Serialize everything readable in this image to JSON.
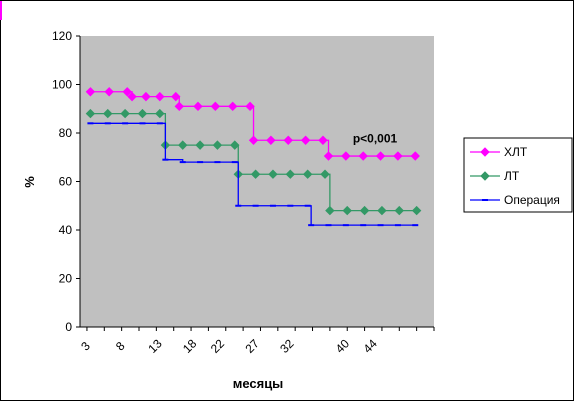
{
  "chart_data": {
    "type": "line",
    "step": true,
    "title": "",
    "xlabel": "месяцы",
    "ylabel": "%",
    "ylim": [
      0,
      120
    ],
    "yticks": [
      0,
      20,
      40,
      60,
      80,
      100,
      120
    ],
    "xlim": [
      1.5,
      52.5
    ],
    "xtick_labels": [
      "3",
      "8",
      "13",
      "18",
      "22",
      "27",
      "32",
      "40",
      "44"
    ],
    "xtick_values": [
      3,
      8,
      13,
      18,
      22,
      27,
      32,
      40,
      44
    ],
    "annotation": {
      "text": "p<0,001",
      "x": 44,
      "y": 76
    },
    "grid": false,
    "plot_bg": "#c0c0c0",
    "legend_position": "right",
    "series": [
      {
        "name": "ХЛТ",
        "color": "#ff00ff",
        "marker": "diamond",
        "x": [
          3,
          5.7,
          8.3,
          9,
          11,
          13,
          15.3,
          15.8,
          18.5,
          21,
          23.5,
          26,
          26.5,
          29,
          31.5,
          34,
          36.5,
          37.3,
          39.8,
          42.3,
          44.8,
          47.3,
          49.8
        ],
        "y": [
          97,
          97,
          97,
          95,
          95,
          95,
          95,
          91,
          91,
          91,
          91,
          91,
          77,
          77,
          77,
          77,
          77,
          70.5,
          70.5,
          70.5,
          70.5,
          70.5,
          70.5
        ]
      },
      {
        "name": "ЛТ",
        "color": "#339966",
        "marker": "diamond",
        "x": [
          3,
          5.5,
          8,
          10.5,
          13,
          13.8,
          16.3,
          18.8,
          21.3,
          23.8,
          24.3,
          26.8,
          29.3,
          31.8,
          34.3,
          36.8,
          37.5,
          40,
          42.5,
          45,
          47.5,
          50
        ],
        "y": [
          88,
          88,
          88,
          88,
          88,
          75,
          75,
          75,
          75,
          75,
          63,
          63,
          63,
          63,
          63,
          63,
          48,
          48,
          48,
          48,
          48,
          48
        ]
      },
      {
        "name": "Операция",
        "color": "#0000ff",
        "marker": "dash",
        "x": [
          3,
          5.5,
          8,
          10.5,
          13,
          13.8,
          16.3,
          18.8,
          21.3,
          23.8,
          24.3,
          26.8,
          29.3,
          31.8,
          34.3,
          34.8,
          37.3,
          39.8,
          42.3,
          44.8,
          47.3,
          49.8
        ],
        "y": [
          84,
          84,
          84,
          84,
          84,
          69,
          68,
          68,
          68,
          68,
          50,
          50,
          50,
          50,
          50,
          42,
          42,
          42,
          42,
          42,
          42,
          42
        ]
      }
    ]
  }
}
